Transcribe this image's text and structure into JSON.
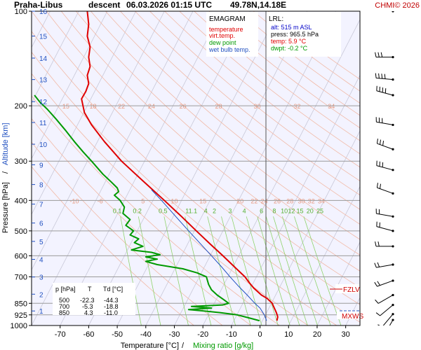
{
  "header": {
    "station": "Praha-Libus",
    "mode": "descent",
    "datetime": "06.03.2026 01:15 UTC",
    "coords": "49.78N,14.18E",
    "copyright": "CHMI© 2026"
  },
  "legend": {
    "title": "EMAGRAM",
    "items": [
      {
        "label": "temperature",
        "color": "#e00000"
      },
      {
        "label": "virt.temp.",
        "color": "#e00000"
      },
      {
        "label": "dew point",
        "color": "#009a00"
      },
      {
        "label": "wet bulb temp.",
        "color": "#2050c0"
      }
    ]
  },
  "lrl": {
    "title": "LRL:",
    "lines": [
      {
        "text": "alt: 515 m ASL",
        "color": "#0000c8"
      },
      {
        "text": "press: 965.5 hPa",
        "color": "#000000"
      },
      {
        "text": "temp: 5.9 °C",
        "color": "#e00000"
      },
      {
        "text": "dwpt: -0.2 °C",
        "color": "#009a00"
      }
    ]
  },
  "table": {
    "header": [
      "p [hPa]",
      "T",
      "Td [°C]"
    ],
    "rows": [
      [
        "500",
        "-22.3",
        "-44.3"
      ],
      [
        "700",
        "-5.3",
        "-18.8"
      ],
      [
        "850",
        "4.3",
        "-11.0"
      ]
    ]
  },
  "markers": {
    "fzlv": "FZLV",
    "mxws": "MXWS"
  },
  "chart_data": {
    "type": "line",
    "title": "EMAGRAM",
    "xlabel": "Temperature [°C]",
    "xlabel_sep": " / ",
    "xlabel2": "Mixing ratio [g/kg]",
    "ylabel": "Pressure [hPa]",
    "ylabel_sep": " / ",
    "ylabel2": "Altitude [km]",
    "xlim": [
      -80,
      35
    ],
    "ylim": [
      1000,
      100
    ],
    "y_scale": "log",
    "x_ticks": [
      -70,
      -60,
      -50,
      -40,
      -30,
      -20,
      -10,
      0,
      10,
      20,
      30
    ],
    "p_ticks": [
      100,
      200,
      300,
      400,
      500,
      600,
      700,
      850,
      925,
      1000
    ],
    "p_lines": [
      200,
      300,
      400,
      500,
      600,
      700,
      850,
      925
    ],
    "altitude_ticks": [
      {
        "label": "16",
        "p": 100
      },
      {
        "label": "15",
        "p": 120
      },
      {
        "label": "14",
        "p": 141
      },
      {
        "label": "13",
        "p": 165
      },
      {
        "label": "12",
        "p": 194
      },
      {
        "label": "11",
        "p": 226
      },
      {
        "label": "10",
        "p": 265
      },
      {
        "label": "9",
        "p": 308
      },
      {
        "label": "8",
        "p": 356
      },
      {
        "label": "7",
        "p": 411
      },
      {
        "label": "6",
        "p": 472
      },
      {
        "label": "5",
        "p": 540
      },
      {
        "label": "4",
        "p": 616
      },
      {
        "label": "3",
        "p": 701
      },
      {
        "label": "2",
        "p": 795
      },
      {
        "label": "1",
        "p": 899
      }
    ],
    "isotherm_temps": [
      -150,
      -140,
      -130,
      -120,
      -110,
      -100,
      -90,
      -80,
      -70,
      -60,
      -50,
      -40,
      -30,
      -20,
      -10,
      0,
      10,
      20,
      30
    ],
    "dry_adiabat_thetas": [
      250,
      260,
      270,
      280,
      290,
      300,
      310,
      320,
      330,
      340,
      350,
      360,
      370,
      380,
      390,
      400,
      410,
      420,
      430,
      440,
      450,
      460,
      470,
      480
    ],
    "dry_adiabat_labels": {
      "row200": {
        "p": 200,
        "labels": [
          "15",
          "18",
          "22",
          "24",
          "26",
          "28",
          "30",
          "32",
          "34"
        ],
        "temps": [
          -68,
          -58.5,
          -48.5,
          -38,
          -27,
          -14.5,
          -1,
          13,
          25
        ]
      },
      "row400": {
        "p": 400,
        "labels": [
          "-10",
          "-6",
          "5",
          "10",
          "15",
          "20",
          "22",
          "24",
          "26",
          "28",
          "30",
          "32",
          "34"
        ],
        "temps": [
          -65,
          -56,
          -41,
          -30,
          -20,
          -7,
          -2,
          1.5,
          6,
          10.5,
          14.5,
          18,
          21.5
        ]
      }
    },
    "mixing_ratio_labels": {
      "p": 450,
      "labels": [
        "0.1",
        "0.2",
        "0.5",
        "1",
        "1.1",
        "4",
        "2",
        "3",
        "4",
        "6",
        "8",
        "10",
        "12",
        "15",
        "20",
        "25"
      ],
      "temps": [
        -50,
        -43,
        -34,
        -25.5,
        -23.5,
        -19,
        -16,
        -10.5,
        -5.5,
        0.5,
        5,
        8.5,
        11,
        14,
        17.5,
        21
      ]
    },
    "mixing_ratio_values": [
      0.1,
      0.2,
      0.5,
      1,
      2,
      3,
      4,
      6,
      8,
      10,
      12,
      15,
      20,
      25
    ],
    "series": [
      {
        "name": "temperature",
        "color": "#e00000",
        "points": [
          {
            "p": 965,
            "t": 5.9
          },
          {
            "p": 940,
            "t": 6.2
          },
          {
            "p": 925,
            "t": 6.0
          },
          {
            "p": 905,
            "t": 5.6
          },
          {
            "p": 880,
            "t": 5.0
          },
          {
            "p": 860,
            "t": 4.5
          },
          {
            "p": 850,
            "t": 4.3
          },
          {
            "p": 820,
            "t": 2.5
          },
          {
            "p": 800,
            "t": 0.5
          },
          {
            "p": 760,
            "t": -2.2
          },
          {
            "p": 730,
            "t": -3.8
          },
          {
            "p": 700,
            "t": -5.3
          },
          {
            "p": 650,
            "t": -9.0
          },
          {
            "p": 600,
            "t": -13.0
          },
          {
            "p": 550,
            "t": -17.5
          },
          {
            "p": 500,
            "t": -22.3
          },
          {
            "p": 450,
            "t": -27.5
          },
          {
            "p": 400,
            "t": -33.5
          },
          {
            "p": 350,
            "t": -40.5
          },
          {
            "p": 300,
            "t": -48.5
          },
          {
            "p": 260,
            "t": -54.5
          },
          {
            "p": 230,
            "t": -59.0
          },
          {
            "p": 210,
            "t": -61.5
          },
          {
            "p": 200,
            "t": -62.0
          },
          {
            "p": 190,
            "t": -62.5
          },
          {
            "p": 180,
            "t": -61.0
          },
          {
            "p": 170,
            "t": -60.0
          },
          {
            "p": 160,
            "t": -60.5
          },
          {
            "p": 150,
            "t": -59.5
          },
          {
            "p": 140,
            "t": -60.0
          },
          {
            "p": 130,
            "t": -59.5
          },
          {
            "p": 120,
            "t": -60.5
          },
          {
            "p": 110,
            "t": -60.0
          },
          {
            "p": 100,
            "t": -60.5
          }
        ]
      },
      {
        "name": "wet bulb temp.",
        "color": "#2050c0",
        "points": [
          {
            "p": 965,
            "t": 2.3
          },
          {
            "p": 925,
            "t": 1.5
          },
          {
            "p": 880,
            "t": 0.0
          },
          {
            "p": 850,
            "t": -1.8
          },
          {
            "p": 800,
            "t": -4.5
          },
          {
            "p": 750,
            "t": -7.5
          },
          {
            "p": 700,
            "t": -10.5
          },
          {
            "p": 650,
            "t": -13.5
          },
          {
            "p": 600,
            "t": -17.0
          },
          {
            "p": 550,
            "t": -20.8
          },
          {
            "p": 500,
            "t": -25.0
          },
          {
            "p": 450,
            "t": -29.5
          },
          {
            "p": 400,
            "t": -34.5
          },
          {
            "p": 370,
            "t": -38.0
          }
        ]
      },
      {
        "name": "dew point",
        "color": "#009a00",
        "points": [
          {
            "p": 965,
            "t": -0.2
          },
          {
            "p": 945,
            "t": -4.0
          },
          {
            "p": 925,
            "t": -8.0
          },
          {
            "p": 910,
            "t": -14.0
          },
          {
            "p": 900,
            "t": -19.0
          },
          {
            "p": 890,
            "t": -25.0
          },
          {
            "p": 880,
            "t": -17.0
          },
          {
            "p": 870,
            "t": -24.0
          },
          {
            "p": 860,
            "t": -13.0
          },
          {
            "p": 850,
            "t": -11.0
          },
          {
            "p": 830,
            "t": -12.5
          },
          {
            "p": 800,
            "t": -15.0
          },
          {
            "p": 770,
            "t": -17.0
          },
          {
            "p": 740,
            "t": -18.0
          },
          {
            "p": 700,
            "t": -18.8
          },
          {
            "p": 680,
            "t": -22.0
          },
          {
            "p": 660,
            "t": -27.0
          },
          {
            "p": 640,
            "t": -36.0
          },
          {
            "p": 625,
            "t": -40.0
          },
          {
            "p": 615,
            "t": -36.0
          },
          {
            "p": 605,
            "t": -40.0
          },
          {
            "p": 595,
            "t": -35.0
          },
          {
            "p": 585,
            "t": -38.0
          },
          {
            "p": 575,
            "t": -45.0
          },
          {
            "p": 560,
            "t": -41.0
          },
          {
            "p": 545,
            "t": -44.0
          },
          {
            "p": 530,
            "t": -42.5
          },
          {
            "p": 515,
            "t": -45.5
          },
          {
            "p": 500,
            "t": -44.3
          },
          {
            "p": 480,
            "t": -47.0
          },
          {
            "p": 460,
            "t": -45.5
          },
          {
            "p": 440,
            "t": -48.0
          },
          {
            "p": 420,
            "t": -47.5
          },
          {
            "p": 400,
            "t": -49.0
          },
          {
            "p": 385,
            "t": -51.0
          },
          {
            "p": 375,
            "t": -49.5
          },
          {
            "p": 365,
            "t": -50.0
          },
          {
            "p": 350,
            "t": -52.0
          },
          {
            "p": 330,
            "t": -55.0
          },
          {
            "p": 300,
            "t": -59.0
          },
          {
            "p": 280,
            "t": -62.0
          },
          {
            "p": 260,
            "t": -65.0
          },
          {
            "p": 240,
            "t": -68.0
          },
          {
            "p": 220,
            "t": -71.5
          },
          {
            "p": 205,
            "t": -74.5
          },
          {
            "p": 195,
            "t": -77.0
          },
          {
            "p": 185,
            "t": -79.0
          }
        ]
      }
    ]
  },
  "wind_profile": [
    {
      "p": 100,
      "dir": 290,
      "spd": 20
    },
    {
      "p": 140,
      "dir": 270,
      "spd": 30
    },
    {
      "p": 165,
      "dir": 275,
      "spd": 40
    },
    {
      "p": 185,
      "dir": 285,
      "spd": 35
    },
    {
      "p": 230,
      "dir": 280,
      "spd": 30
    },
    {
      "p": 275,
      "dir": 290,
      "spd": 25
    },
    {
      "p": 320,
      "dir": 285,
      "spd": 25
    },
    {
      "p": 380,
      "dir": 290,
      "spd": 20
    },
    {
      "p": 450,
      "dir": 280,
      "spd": 20
    },
    {
      "p": 500,
      "dir": 285,
      "spd": 15
    },
    {
      "p": 560,
      "dir": 270,
      "spd": 20
    },
    {
      "p": 640,
      "dir": 260,
      "spd": 15
    },
    {
      "p": 720,
      "dir": 250,
      "spd": 15
    },
    {
      "p": 800,
      "dir": 240,
      "spd": 10
    },
    {
      "p": 860,
      "dir": 230,
      "spd": 10
    },
    {
      "p": 920,
      "dir": 220,
      "spd": 10
    },
    {
      "p": 960,
      "dir": 210,
      "spd": 5
    }
  ]
}
